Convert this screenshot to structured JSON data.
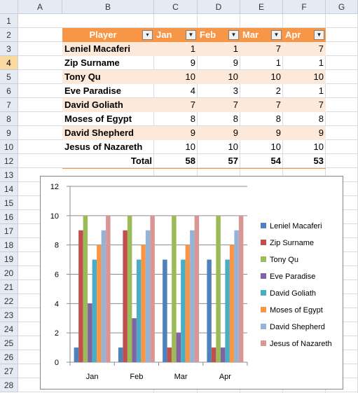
{
  "columns": [
    "A",
    "B",
    "C",
    "D",
    "E",
    "F",
    "G"
  ],
  "rows": [
    "1",
    "2",
    "3",
    "4",
    "5",
    "6",
    "7",
    "8",
    "9",
    "10",
    "12",
    "13",
    "14",
    "15",
    "16",
    "17",
    "18",
    "19",
    "20",
    "21",
    "22",
    "23",
    "24",
    "25",
    "26",
    "27",
    "28"
  ],
  "selected_row": "4",
  "table": {
    "headers": [
      "Player",
      "Jan",
      "Feb",
      "Mar",
      "Apr"
    ],
    "rows": [
      {
        "name": "Leniel Macaferi",
        "v": [
          "1",
          "1",
          "7",
          "7"
        ]
      },
      {
        "name": "Zip Surname",
        "v": [
          "9",
          "9",
          "1",
          "1"
        ]
      },
      {
        "name": "Tony Qu",
        "v": [
          "10",
          "10",
          "10",
          "10"
        ]
      },
      {
        "name": "Eve Paradise",
        "v": [
          "4",
          "3",
          "2",
          "1"
        ]
      },
      {
        "name": "David Goliath",
        "v": [
          "7",
          "7",
          "7",
          "7"
        ]
      },
      {
        "name": "Moses of Egypt",
        "v": [
          "8",
          "8",
          "8",
          "8"
        ]
      },
      {
        "name": "David Shepherd",
        "v": [
          "9",
          "9",
          "9",
          "9"
        ]
      },
      {
        "name": "Jesus of Nazareth",
        "v": [
          "10",
          "10",
          "10",
          "10"
        ]
      }
    ],
    "total_label": "Total",
    "totals": [
      "58",
      "57",
      "54",
      "53"
    ]
  },
  "chart_data": {
    "type": "bar",
    "categories": [
      "Jan",
      "Feb",
      "Mar",
      "Apr"
    ],
    "series": [
      {
        "name": "Leniel Macaferi",
        "color": "#4f81bd",
        "values": [
          1,
          1,
          7,
          7
        ]
      },
      {
        "name": "Zip Surname",
        "color": "#c0504d",
        "values": [
          9,
          9,
          1,
          1
        ]
      },
      {
        "name": "Tony Qu",
        "color": "#9bbb59",
        "values": [
          10,
          10,
          10,
          10
        ]
      },
      {
        "name": "Eve Paradise",
        "color": "#8064a2",
        "values": [
          4,
          3,
          2,
          1
        ]
      },
      {
        "name": "David Goliath",
        "color": "#4bacc6",
        "values": [
          7,
          7,
          7,
          7
        ]
      },
      {
        "name": "Moses of Egypt",
        "color": "#f79646",
        "values": [
          8,
          8,
          8,
          8
        ]
      },
      {
        "name": "David Shepherd",
        "color": "#95b3d7",
        "values": [
          9,
          9,
          9,
          9
        ]
      },
      {
        "name": "Jesus of Nazareth",
        "color": "#d99694",
        "values": [
          10,
          10,
          10,
          10
        ]
      }
    ],
    "yticks": [
      "0",
      "2",
      "4",
      "6",
      "8",
      "10",
      "12"
    ],
    "ylim": [
      0,
      12
    ],
    "grid": true,
    "legend": "right"
  }
}
